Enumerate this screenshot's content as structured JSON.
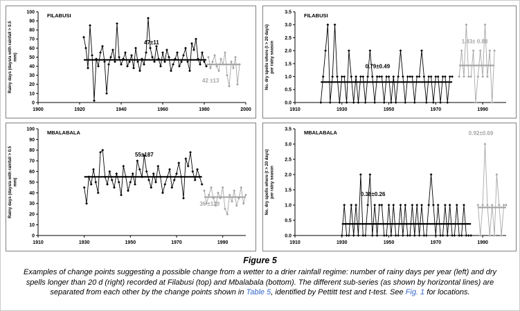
{
  "figure_caption": {
    "label": "Figure 5",
    "link_color": "#3366cc",
    "parts": [
      {
        "text": "Examples of change points suggesting a possible change from a wetter to a drier rainfall regime: number of rainy days per year (left) and dry spells longer than 20 d (right) recorded at Filabusi (top) and Mbalabala (bottom). The different sub-series (as shown by horizontal lines) are separated from each other by the change points shown in ",
        "link": false
      },
      {
        "text": "Table 5",
        "link": true
      },
      {
        "text": ", identified by Pettitt test and t-test. See ",
        "link": false
      },
      {
        "text": "Fig. 1",
        "link": true
      },
      {
        "text": " for locations.",
        "link": false
      }
    ]
  },
  "colors": {
    "series_black": "#000000",
    "series_grey": "#a6a6a6",
    "panel_border": "#7f7f7f",
    "link_blue": "#3366cc"
  },
  "chart_data": [
    {
      "id": "filabusi-rainy-days",
      "type": "line",
      "title": "FILABUSI",
      "ylabel": "Rainy days (days/a with rainfall > 0.5 mm)",
      "ylabel_lines": [
        "Rainy days (days/a with rainfall > 0.5",
        "mm)"
      ],
      "xlim": [
        1900,
        2000
      ],
      "ylim": [
        0,
        100
      ],
      "xticks": [
        1900,
        1920,
        1940,
        1960,
        1980,
        2000
      ],
      "yticks": [
        0,
        10,
        20,
        30,
        40,
        50,
        60,
        70,
        80,
        90,
        100
      ],
      "ytick_decimals": 0,
      "grid": false,
      "legend": false,
      "series": [
        {
          "name": "sub-series 1 (wetter)",
          "color": "#000000",
          "mean": 47,
          "mean_range": [
            1922,
            1981
          ],
          "stat_label": "47±11",
          "x": [
            1922,
            1923,
            1924,
            1925,
            1926,
            1927,
            1928,
            1929,
            1930,
            1931,
            1932,
            1933,
            1934,
            1935,
            1936,
            1937,
            1938,
            1939,
            1940,
            1941,
            1942,
            1943,
            1944,
            1945,
            1946,
            1947,
            1948,
            1949,
            1950,
            1951,
            1952,
            1953,
            1954,
            1955,
            1956,
            1957,
            1958,
            1959,
            1960,
            1961,
            1962,
            1963,
            1964,
            1965,
            1966,
            1967,
            1968,
            1969,
            1970,
            1971,
            1972,
            1973,
            1974,
            1975,
            1976,
            1977,
            1978,
            1979,
            1980,
            1981
          ],
          "values": [
            72,
            60,
            38,
            85,
            52,
            2,
            48,
            40,
            55,
            62,
            45,
            10,
            42,
            50,
            58,
            45,
            87,
            50,
            42,
            48,
            55,
            40,
            45,
            52,
            38,
            60,
            45,
            35,
            48,
            42,
            55,
            93,
            60,
            50,
            45,
            62,
            48,
            40,
            55,
            45,
            58,
            50,
            35,
            42,
            48,
            55,
            40,
            45,
            52,
            60,
            45,
            35,
            65,
            58,
            70,
            48,
            42,
            55,
            45,
            40
          ]
        },
        {
          "name": "sub-series 2 (drier)",
          "color": "#a6a6a6",
          "mean": 42,
          "mean_range": [
            1981,
            1997
          ],
          "stat_label": "42 ±13",
          "x": [
            1982,
            1983,
            1984,
            1985,
            1986,
            1987,
            1988,
            1989,
            1990,
            1991,
            1992,
            1993,
            1994,
            1995,
            1996,
            1997
          ],
          "values": [
            50,
            38,
            45,
            52,
            40,
            35,
            48,
            42,
            55,
            30,
            18,
            45,
            38,
            50,
            20,
            42
          ]
        }
      ],
      "annotations": [
        {
          "text": "47±11",
          "x": 1951,
          "y": 64,
          "color": "#000000"
        },
        {
          "text": "42 ±13",
          "x": 1979,
          "y": 22,
          "color": "#a6a6a6"
        }
      ]
    },
    {
      "id": "filabusi-dry-spells",
      "type": "line",
      "title": "FILABUSI",
      "ylabel": "No. dry spells where (t > 20 days) per rainy season",
      "ylabel_lines": [
        "No. dry spells where (t > 20 days)",
        "per rainy season"
      ],
      "xlim": [
        1910,
        2000
      ],
      "ylim": [
        0,
        3.5
      ],
      "xticks": [
        1910,
        1930,
        1950,
        1970,
        1990
      ],
      "yticks": [
        0,
        0.5,
        1,
        1.5,
        2,
        2.5,
        3,
        3.5
      ],
      "ytick_decimals": 1,
      "grid": false,
      "legend": false,
      "series": [
        {
          "name": "sub-series 1 (wetter)",
          "color": "#000000",
          "mean": 0.79,
          "mean_range": [
            1921,
            1977
          ],
          "stat_label": "0.79±0.49",
          "x": [
            1921,
            1922,
            1923,
            1924,
            1925,
            1926,
            1927,
            1928,
            1929,
            1930,
            1931,
            1932,
            1933,
            1934,
            1935,
            1936,
            1937,
            1938,
            1939,
            1940,
            1941,
            1942,
            1943,
            1944,
            1945,
            1946,
            1947,
            1948,
            1949,
            1950,
            1951,
            1952,
            1953,
            1954,
            1955,
            1956,
            1957,
            1958,
            1959,
            1960,
            1961,
            1962,
            1963,
            1964,
            1965,
            1966,
            1967,
            1968,
            1969,
            1970,
            1971,
            1972,
            1973,
            1974,
            1975,
            1976,
            1977
          ],
          "values": [
            0,
            1,
            2,
            3,
            0,
            1,
            3,
            1,
            0,
            1,
            1,
            0,
            2,
            1,
            0,
            1,
            0,
            1,
            1,
            0,
            1,
            2,
            1,
            0,
            1,
            1,
            1,
            0,
            1,
            1,
            0,
            1,
            0,
            1,
            2,
            1,
            0,
            1,
            1,
            1,
            0,
            1,
            1,
            2,
            1,
            0,
            1,
            1,
            0,
            1,
            1,
            0,
            1,
            1,
            0,
            1,
            1
          ]
        },
        {
          "name": "sub-series 2 (drier)",
          "color": "#a6a6a6",
          "mean": 1.43,
          "mean_range": [
            1980,
            1995
          ],
          "stat_label": "1.43± 0.88",
          "x": [
            1980,
            1981,
            1982,
            1983,
            1984,
            1985,
            1986,
            1987,
            1988,
            1989,
            1990,
            1991,
            1992,
            1993,
            1994,
            1995
          ],
          "values": [
            1,
            2,
            1,
            3,
            1,
            1,
            2,
            0,
            1,
            2,
            1,
            3,
            1,
            2,
            0,
            2
          ]
        }
      ],
      "annotations": [
        {
          "text": "0.79±0.49",
          "x": 1940,
          "y": 1.32,
          "color": "#000000"
        },
        {
          "text": "1.43± 0.88",
          "x": 1981,
          "y": 2.28,
          "color": "#a6a6a6"
        }
      ]
    },
    {
      "id": "mbalabala-rainy-days",
      "type": "line",
      "title": "MBALABALA",
      "ylabel": "Rainy days (days/a with rainfall > 0.5 mm)",
      "ylabel_lines": [
        "Rainy days (days/a with rainfall > 0.5",
        "mm)"
      ],
      "xlim": [
        1910,
        2000
      ],
      "ylim": [
        0,
        100
      ],
      "xticks": [
        1910,
        1930,
        1950,
        1970,
        1990
      ],
      "yticks": [
        0,
        10,
        20,
        30,
        40,
        50,
        60,
        70,
        80,
        90,
        100
      ],
      "ytick_decimals": 0,
      "grid": false,
      "legend": false,
      "series": [
        {
          "name": "sub-series 1 (wetter)",
          "color": "#000000",
          "mean": 55,
          "mean_range": [
            1930,
            1981
          ],
          "stat_label": "55±187",
          "x": [
            1930,
            1931,
            1932,
            1933,
            1934,
            1935,
            1936,
            1937,
            1938,
            1939,
            1940,
            1941,
            1942,
            1943,
            1944,
            1945,
            1946,
            1947,
            1948,
            1949,
            1950,
            1951,
            1952,
            1953,
            1954,
            1955,
            1956,
            1957,
            1958,
            1959,
            1960,
            1961,
            1962,
            1963,
            1964,
            1965,
            1966,
            1967,
            1968,
            1969,
            1970,
            1971,
            1972,
            1973,
            1974,
            1975,
            1976,
            1977,
            1978,
            1979,
            1980,
            1981
          ],
          "values": [
            45,
            30,
            55,
            48,
            62,
            50,
            40,
            78,
            80,
            55,
            48,
            60,
            52,
            45,
            58,
            50,
            38,
            65,
            55,
            42,
            50,
            58,
            48,
            70,
            62,
            55,
            75,
            60,
            52,
            45,
            58,
            50,
            65,
            55,
            40,
            48,
            55,
            62,
            45,
            52,
            58,
            68,
            55,
            35,
            72,
            65,
            78,
            60,
            52,
            62,
            55,
            48
          ]
        },
        {
          "name": "sub-series 2 (drier)",
          "color": "#a6a6a6",
          "mean": 36,
          "mean_range": [
            1982,
            2000
          ],
          "stat_label": "36 ±129",
          "x": [
            1982,
            1983,
            1984,
            1985,
            1986,
            1987,
            1988,
            1989,
            1990,
            1991,
            1992,
            1993,
            1994,
            1995,
            1996,
            1997,
            1998,
            1999,
            2000
          ],
          "values": [
            42,
            30,
            38,
            45,
            35,
            28,
            40,
            35,
            45,
            25,
            20,
            38,
            32,
            42,
            28,
            35,
            45,
            30,
            38
          ]
        }
      ],
      "annotations": [
        {
          "text": "55±187",
          "x": 1952,
          "y": 74,
          "color": "#000000"
        },
        {
          "text": "36 ±129",
          "x": 1980,
          "y": 28,
          "color": "#a6a6a6"
        }
      ]
    },
    {
      "id": "mbalabala-dry-spells",
      "type": "line",
      "title": "MBALABALA",
      "ylabel": "No. dry spells where (t > 20 days) per rainy season",
      "ylabel_lines": [
        "No. dry spells where (t > 20 days)",
        "per rainy season"
      ],
      "xlim": [
        1910,
        2000
      ],
      "ylim": [
        0,
        3.5
      ],
      "xticks": [
        1910,
        1930,
        1950,
        1970,
        1990
      ],
      "yticks": [
        0,
        0.5,
        1,
        1.5,
        2,
        2.5,
        3,
        3.5
      ],
      "ytick_decimals": 1,
      "grid": false,
      "legend": false,
      "series": [
        {
          "name": "sub-series 1 (wetter)",
          "color": "#000000",
          "mean": 0.38,
          "mean_range": [
            1930,
            1985
          ],
          "stat_label": "0.38±0.26",
          "x": [
            1930,
            1931,
            1932,
            1933,
            1934,
            1935,
            1936,
            1937,
            1938,
            1939,
            1940,
            1941,
            1942,
            1943,
            1944,
            1945,
            1946,
            1947,
            1948,
            1949,
            1950,
            1951,
            1952,
            1953,
            1954,
            1955,
            1956,
            1957,
            1958,
            1959,
            1960,
            1961,
            1962,
            1963,
            1964,
            1965,
            1966,
            1967,
            1968,
            1969,
            1970,
            1971,
            1972,
            1973,
            1974,
            1975,
            1976,
            1977,
            1978,
            1979,
            1980,
            1981,
            1982,
            1983,
            1984,
            1985
          ],
          "values": [
            0,
            1,
            0,
            0,
            1,
            0,
            1,
            0,
            2,
            0,
            0,
            1,
            2,
            0,
            1,
            0,
            1,
            1,
            0,
            0,
            1,
            0,
            1,
            0,
            0,
            1,
            0,
            1,
            0,
            0,
            1,
            0,
            1,
            0,
            1,
            0,
            0,
            1,
            2,
            1,
            0,
            1,
            0,
            0,
            1,
            0,
            1,
            0,
            0,
            1,
            0,
            0,
            1,
            0,
            0,
            0
          ]
        },
        {
          "name": "sub-series 2 (drier)",
          "color": "#a6a6a6",
          "mean": 0.92,
          "mean_range": [
            1988,
            2000
          ],
          "stat_label": "0.92±0.69",
          "x": [
            1988,
            1989,
            1990,
            1991,
            1992,
            1993,
            1994,
            1995,
            1996,
            1997,
            1998,
            1999,
            2000
          ],
          "values": [
            1,
            0,
            1,
            3,
            1,
            0,
            1,
            0,
            2,
            1,
            0,
            1,
            1
          ]
        }
      ],
      "annotations": [
        {
          "text": "0.38±0.26",
          "x": 1938,
          "y": 1.3,
          "color": "#000000"
        },
        {
          "text": "0.92±0.69",
          "x": 1984,
          "y": 3.3,
          "color": "#a6a6a6"
        }
      ]
    }
  ]
}
